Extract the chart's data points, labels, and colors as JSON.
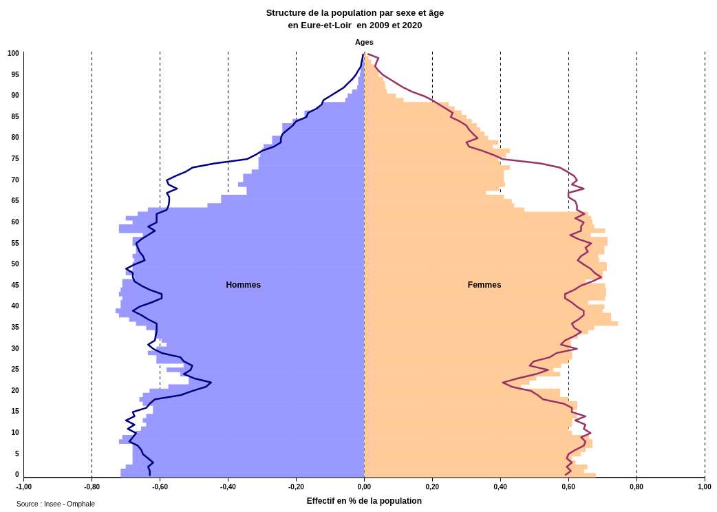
{
  "chart_data": {
    "type": "bar",
    "orientation": "horizontal",
    "title": "Structure de la population par sexe et âge",
    "subtitle": "en Eure-et-Loir  en 2009 et 2020",
    "xlabel": "Effectif en % de la population",
    "ylabel": "Ages",
    "annotations": [
      "Source : Insee - Omphale"
    ],
    "categories": [
      "100",
      null,
      null,
      null,
      null,
      "95",
      null,
      null,
      null,
      null,
      "90",
      null,
      null,
      null,
      null,
      "85",
      null,
      null,
      null,
      null,
      "80",
      null,
      null,
      null,
      null,
      "75",
      null,
      null,
      null,
      null,
      "70",
      null,
      null,
      null,
      null,
      "65",
      null,
      null,
      null,
      null,
      "60",
      null,
      null,
      null,
      null,
      "55",
      null,
      null,
      null,
      null,
      "50",
      null,
      null,
      null,
      null,
      "45",
      null,
      null,
      null,
      null,
      "40",
      null,
      null,
      null,
      null,
      "35",
      null,
      null,
      null,
      null,
      "30",
      null,
      null,
      null,
      null,
      "25",
      null,
      null,
      null,
      null,
      "20",
      null,
      null,
      null,
      null,
      "15",
      null,
      null,
      null,
      null,
      "10",
      null,
      null,
      null,
      null,
      "5",
      null,
      null,
      null,
      null,
      "0"
    ],
    "xlim": [
      -1,
      1
    ],
    "xticks": [
      {
        "value": -1,
        "label": "-1,00"
      },
      {
        "value": -0.8,
        "label": "-0,80"
      },
      {
        "value": -0.6,
        "label": "-0,60"
      },
      {
        "value": -0.4,
        "label": "-0,40"
      },
      {
        "value": -0.2,
        "label": "-0,20"
      },
      {
        "value": 0,
        "label": "0,00"
      },
      {
        "value": 0.2,
        "label": "0,20"
      },
      {
        "value": 0.4,
        "label": "0,40"
      },
      {
        "value": 0.6,
        "label": "0,60"
      },
      {
        "value": 0.8,
        "label": "0,80"
      },
      {
        "value": 1,
        "label": "1,00"
      }
    ],
    "grid": "x",
    "legend": false,
    "stacked": true,
    "series": [
      {
        "name": "Hommes",
        "color": "#9999ff",
        "values": [
          null,
          null,
          -0.005,
          -0.008,
          -0.01,
          -0.012,
          -0.017,
          -0.017,
          -0.02,
          -0.035,
          -0.048,
          -0.055,
          -0.125,
          -0.14,
          -0.175,
          -0.175,
          -0.21,
          -0.24,
          -0.24,
          -0.24,
          -0.27,
          -0.27,
          -0.295,
          -0.3,
          -0.305,
          -0.31,
          -0.31,
          -0.31,
          -0.33,
          -0.355,
          -0.355,
          -0.37,
          -0.345,
          -0.345,
          -0.42,
          -0.42,
          -0.46,
          -0.635,
          -0.665,
          -0.7,
          -0.68,
          -0.72,
          -0.72,
          -0.65,
          -0.68,
          -0.68,
          -0.67,
          -0.67,
          -0.68,
          -0.675,
          -0.68,
          -0.68,
          -0.7,
          -0.675,
          -0.71,
          -0.71,
          -0.715,
          -0.72,
          -0.71,
          -0.715,
          -0.715,
          -0.73,
          -0.72,
          -0.69,
          -0.67,
          -0.64,
          -0.615,
          -0.615,
          -0.595,
          -0.58,
          -0.61,
          -0.635,
          -0.61,
          -0.61,
          -0.53,
          -0.58,
          -0.54,
          -0.515,
          -0.515,
          -0.575,
          -0.63,
          -0.65,
          -0.66,
          -0.65,
          -0.62,
          -0.62,
          -0.64,
          -0.65,
          -0.64,
          -0.655,
          -0.67,
          -0.71,
          -0.72,
          -0.68,
          -0.68,
          -0.68,
          -0.68,
          -0.68,
          -0.7,
          -0.715,
          -0.715
        ]
      },
      {
        "name": "Femmes",
        "color": "#ffcc99",
        "values": [
          0.005,
          0.012,
          0.02,
          0.03,
          0.04,
          0.042,
          0.055,
          0.06,
          0.062,
          0.066,
          0.092,
          0.115,
          0.248,
          0.265,
          0.285,
          0.3,
          0.315,
          0.33,
          0.34,
          0.353,
          0.363,
          0.393,
          0.377,
          0.427,
          0.416,
          0.393,
          0.4,
          0.427,
          0.41,
          0.41,
          0.41,
          0.413,
          0.397,
          0.357,
          0.41,
          0.433,
          0.44,
          0.47,
          0.657,
          0.667,
          0.67,
          0.675,
          0.707,
          0.665,
          0.714,
          0.714,
          0.705,
          0.705,
          0.687,
          0.69,
          0.712,
          0.712,
          0.7,
          0.7,
          0.65,
          0.707,
          0.71,
          0.71,
          0.707,
          0.657,
          0.705,
          0.7,
          0.725,
          0.725,
          0.745,
          0.675,
          0.657,
          0.627,
          0.607,
          0.607,
          0.6,
          0.61,
          0.61,
          0.6,
          0.578,
          0.555,
          0.575,
          0.505,
          0.485,
          0.46,
          0.575,
          0.575,
          0.6,
          0.625,
          0.625,
          0.61,
          0.625,
          0.61,
          0.61,
          0.6,
          0.61,
          0.66,
          0.67,
          0.67,
          0.65,
          0.635,
          0.61,
          0.62,
          0.655,
          0.645,
          0.68
        ]
      },
      {
        "type": "line",
        "color": "#000080",
        "values": [
          -0.003,
          -0.005,
          -0.008,
          -0.01,
          -0.018,
          -0.025,
          -0.035,
          -0.048,
          -0.06,
          -0.08,
          -0.1,
          -0.12,
          -0.125,
          -0.14,
          -0.165,
          -0.17,
          -0.2,
          -0.21,
          -0.225,
          -0.24,
          -0.245,
          -0.245,
          -0.265,
          -0.3,
          -0.32,
          -0.345,
          -0.44,
          -0.505,
          -0.525,
          -0.555,
          -0.58,
          -0.575,
          -0.55,
          -0.58,
          -0.573,
          -0.573,
          -0.575,
          -0.58,
          -0.61,
          -0.61,
          -0.61,
          -0.635,
          -0.615,
          -0.635,
          -0.655,
          -0.67,
          -0.665,
          -0.66,
          -0.65,
          -0.645,
          -0.675,
          -0.7,
          -0.68,
          -0.68,
          -0.675,
          -0.655,
          -0.63,
          -0.595,
          -0.595,
          -0.625,
          -0.66,
          -0.68,
          -0.655,
          -0.635,
          -0.61,
          -0.61,
          -0.61,
          -0.613,
          -0.615,
          -0.635,
          -0.62,
          -0.595,
          -0.54,
          -0.53,
          -0.505,
          -0.51,
          -0.53,
          -0.5,
          -0.45,
          -0.465,
          -0.505,
          -0.54,
          -0.615,
          -0.63,
          -0.64,
          -0.68,
          -0.675,
          -0.7,
          -0.675,
          -0.695,
          -0.67,
          -0.68,
          -0.69,
          -0.665,
          -0.655,
          -0.65,
          -0.635,
          -0.62,
          -0.635,
          -0.63,
          -0.63
        ]
      },
      {
        "type": "line",
        "color": "#993366",
        "values": [
          0.01,
          0.042,
          0.036,
          0.032,
          0.042,
          0.055,
          0.075,
          0.095,
          0.115,
          0.141,
          0.175,
          0.2,
          0.22,
          0.24,
          0.26,
          0.254,
          0.28,
          0.3,
          0.308,
          0.32,
          0.333,
          0.3,
          0.308,
          0.347,
          0.38,
          0.407,
          0.518,
          0.575,
          0.597,
          0.617,
          0.625,
          0.61,
          0.645,
          0.6,
          0.6,
          0.62,
          0.625,
          0.625,
          0.647,
          0.62,
          0.645,
          0.637,
          0.637,
          0.605,
          0.63,
          0.667,
          0.65,
          0.657,
          0.637,
          0.627,
          0.645,
          0.665,
          0.677,
          0.696,
          0.67,
          0.637,
          0.617,
          0.59,
          0.59,
          0.61,
          0.625,
          0.645,
          0.645,
          0.63,
          0.61,
          0.617,
          0.637,
          0.617,
          0.59,
          0.578,
          0.625,
          0.565,
          0.545,
          0.498,
          0.486,
          0.54,
          0.505,
          0.452,
          0.407,
          0.433,
          0.49,
          0.51,
          0.525,
          0.585,
          0.61,
          0.61,
          0.65,
          0.62,
          0.65,
          0.645,
          0.665,
          0.637,
          0.65,
          0.645,
          0.62,
          0.6,
          0.595,
          0.61,
          0.595,
          0.607,
          0.59
        ]
      }
    ]
  }
}
